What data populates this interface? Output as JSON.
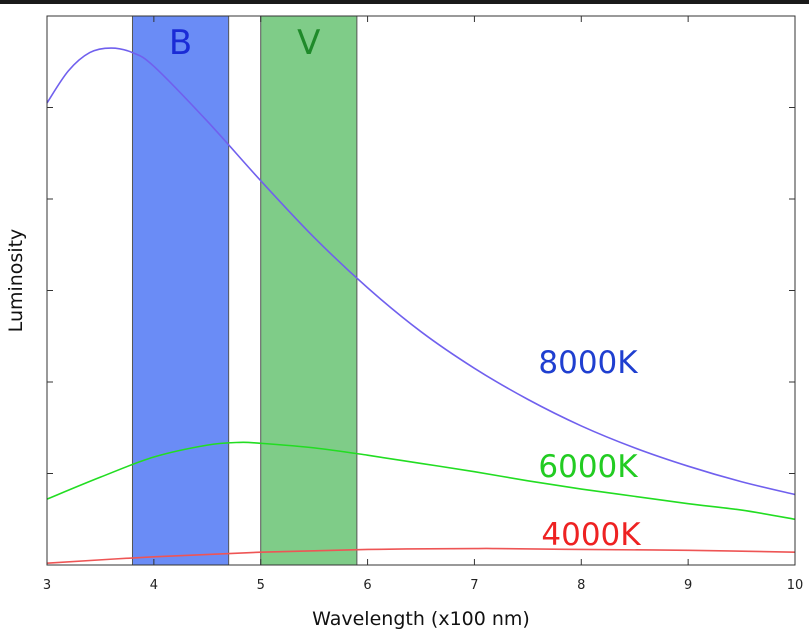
{
  "chart_data": {
    "type": "line",
    "title": "",
    "xlabel": "Wavelength (x100 nm)",
    "ylabel": "Luminosity",
    "xlim": [
      3,
      10
    ],
    "ylim": [
      0,
      6
    ],
    "x_ticks": [
      "3",
      "4",
      "5",
      "6",
      "7",
      "8",
      "9",
      "10"
    ],
    "y_ticks": [
      0,
      1,
      2,
      3,
      4,
      5,
      6
    ],
    "show_y_tick_labels": false,
    "grid": false,
    "bands": [
      {
        "name": "B",
        "x_start": 3.8,
        "x_end": 4.7,
        "color": "#6a8cf6",
        "label_color": "#1a2bd6"
      },
      {
        "name": "V",
        "x_start": 5.0,
        "x_end": 5.9,
        "color": "#7fcc88",
        "label_color": "#1f8a2a"
      }
    ],
    "series": [
      {
        "name": "8000K",
        "label": "8000K",
        "color": "#7060ee",
        "label_color": "#1f3fd0",
        "x": [
          3.0,
          3.2,
          3.4,
          3.6,
          3.8,
          4.0,
          4.5,
          5.0,
          5.5,
          6.0,
          6.5,
          7.0,
          7.5,
          8.0,
          8.5,
          9.0,
          9.5,
          10.0
        ],
        "values": [
          5.05,
          5.4,
          5.6,
          5.65,
          5.6,
          5.45,
          4.85,
          4.2,
          3.58,
          3.03,
          2.55,
          2.15,
          1.81,
          1.52,
          1.28,
          1.08,
          0.91,
          0.77
        ]
      },
      {
        "name": "6000K",
        "label": "6000K",
        "color": "#22dd22",
        "label_color": "#22cc22",
        "x": [
          3.0,
          3.5,
          4.0,
          4.5,
          4.8,
          5.0,
          5.5,
          6.0,
          6.5,
          7.0,
          7.5,
          8.0,
          8.5,
          9.0,
          9.5,
          10.0
        ],
        "values": [
          0.72,
          0.96,
          1.18,
          1.31,
          1.34,
          1.33,
          1.28,
          1.2,
          1.11,
          1.02,
          0.92,
          0.83,
          0.75,
          0.67,
          0.6,
          0.5
        ]
      },
      {
        "name": "4000K",
        "label": "4000K",
        "color": "#ee5555",
        "label_color": "#ee2222",
        "x": [
          3.0,
          4.0,
          5.0,
          6.0,
          7.0,
          7.2,
          8.0,
          9.0,
          10.0
        ],
        "values": [
          0.02,
          0.09,
          0.14,
          0.17,
          0.18,
          0.18,
          0.17,
          0.16,
          0.14
        ]
      }
    ]
  }
}
